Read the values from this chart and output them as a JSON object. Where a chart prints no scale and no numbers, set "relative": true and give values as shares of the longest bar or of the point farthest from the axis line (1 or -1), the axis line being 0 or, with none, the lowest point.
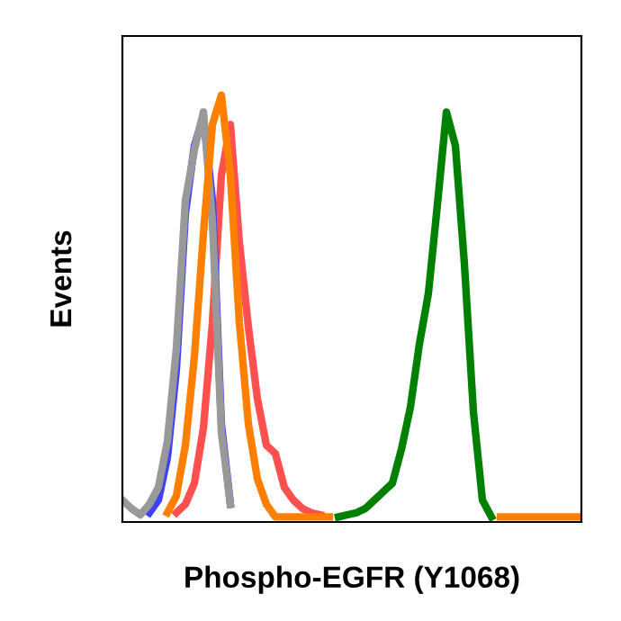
{
  "chart_data": {
    "type": "line",
    "relative": true,
    "xlabel": "Phospho-EGFR (Y1068)",
    "ylabel": "Events",
    "categories": [
      null,
      null,
      null,
      null,
      null,
      null,
      null,
      null,
      null,
      null,
      null,
      null,
      null,
      null,
      null,
      null,
      null,
      null,
      null,
      null,
      null,
      null,
      null,
      null,
      null,
      null,
      null,
      null,
      null,
      null,
      null,
      null,
      null,
      null,
      null,
      null,
      null,
      null,
      null,
      null,
      null,
      null,
      null,
      null,
      null,
      null,
      null,
      null,
      null,
      null,
      null,
      null
    ],
    "marker": "none",
    "line_style": "solid",
    "grid": false,
    "legend": false,
    "series": [
      {
        "color": "#ff5050",
        "values": [
          null,
          null,
          null,
          null,
          null,
          null,
          0.01,
          0.03,
          0.08,
          0.21,
          0.46,
          0.81,
          0.93,
          0.65,
          0.45,
          0.28,
          0.17,
          0.15,
          0.07,
          0.04,
          0.02,
          0.01,
          0.005,
          null,
          null,
          null,
          null,
          null,
          null,
          null,
          null,
          null,
          null,
          null,
          null,
          null,
          null,
          null,
          null,
          null,
          null,
          null,
          null,
          null,
          null,
          null,
          null,
          null,
          null,
          null,
          null,
          null
        ]
      },
      {
        "color": "#4040ff",
        "values": [
          null,
          null,
          null,
          0.01,
          0.04,
          0.14,
          0.35,
          0.72,
          0.88,
          0.95,
          0.75,
          0.22,
          0.03,
          null,
          null,
          null,
          null,
          null,
          null,
          null,
          null,
          null,
          null,
          null,
          null,
          null,
          null,
          null,
          null,
          null,
          null,
          null,
          null,
          null,
          null,
          null,
          null,
          null,
          null,
          null,
          null,
          null,
          null,
          null,
          null,
          null,
          null,
          null,
          null,
          null,
          null,
          null
        ]
      },
      {
        "color": "#999999",
        "values": [
          0.04,
          0.02,
          0.005,
          0.03,
          0.07,
          0.18,
          0.4,
          0.75,
          0.87,
          0.96,
          0.7,
          0.2,
          0.03,
          null,
          null,
          null,
          null,
          null,
          null,
          null,
          null,
          null,
          null,
          null,
          null,
          null,
          null,
          null,
          null,
          null,
          null,
          null,
          null,
          null,
          null,
          null,
          null,
          null,
          null,
          null,
          null,
          null,
          null,
          null,
          null,
          null,
          null,
          null,
          null,
          null,
          null,
          null
        ]
      },
      {
        "color": "#ff8000",
        "values": [
          null,
          null,
          null,
          null,
          null,
          0.01,
          0.05,
          0.17,
          0.38,
          0.67,
          0.93,
          1,
          0.81,
          0.46,
          0.22,
          0.09,
          0.03,
          0,
          0,
          0,
          0,
          0,
          0,
          0,
          null,
          null,
          null,
          null,
          null,
          null,
          null,
          null,
          null,
          null,
          null,
          null,
          null,
          null,
          null,
          null,
          null,
          null,
          0,
          0,
          0,
          0,
          0,
          0,
          0,
          0,
          0,
          0
        ]
      },
      {
        "color": "#008000",
        "values": [
          null,
          null,
          null,
          null,
          null,
          null,
          null,
          null,
          null,
          null,
          null,
          null,
          null,
          null,
          null,
          null,
          null,
          null,
          null,
          null,
          null,
          null,
          null,
          null,
          0,
          0.005,
          0.01,
          0.02,
          0.04,
          0.06,
          0.08,
          0.16,
          0.26,
          0.41,
          0.53,
          0.74,
          0.96,
          0.88,
          0.6,
          0.25,
          0.04,
          0,
          null,
          null,
          null,
          null,
          null,
          null,
          null,
          null,
          null,
          null
        ]
      }
    ]
  }
}
